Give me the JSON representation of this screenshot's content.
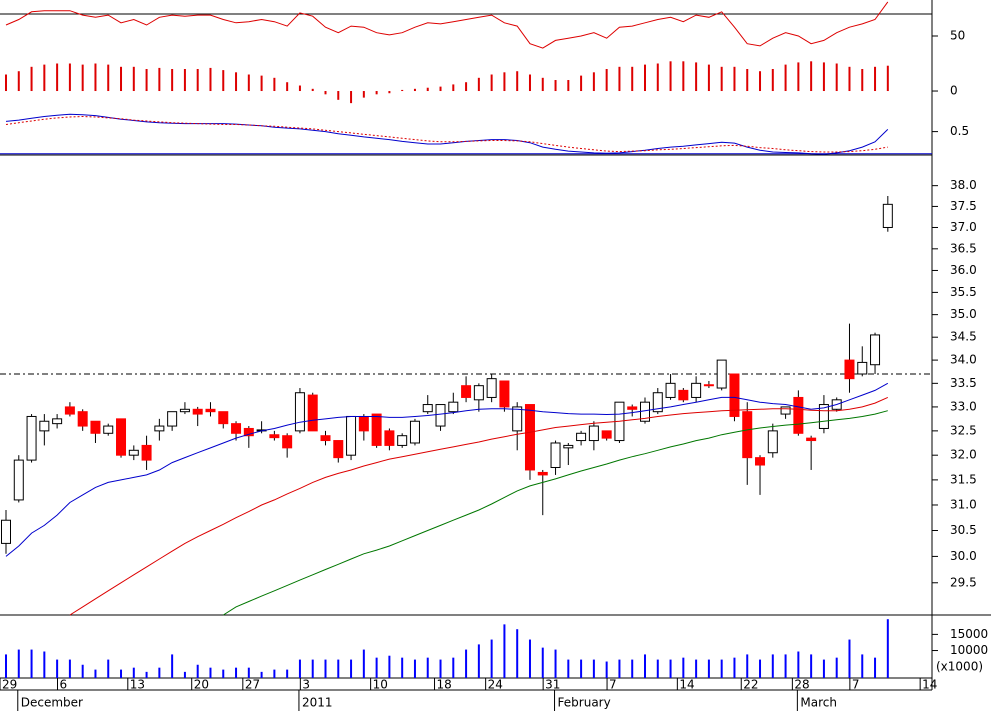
{
  "chart_data": [
    {
      "type": "combo",
      "ylim": [
        -12.7,
        82.7
      ],
      "yticks": [
        0,
        50
      ],
      "ref_line": 70,
      "ref_color": "#000000",
      "ref_style": "solid",
      "series": [
        {
          "kind": "line",
          "color": "#dd0000",
          "values": [
            60,
            65,
            72,
            73,
            73,
            73,
            69,
            67,
            69,
            62,
            65,
            60,
            67,
            69,
            68,
            69,
            69,
            65,
            62,
            63,
            65,
            63,
            59,
            71,
            68,
            58,
            53,
            59,
            58,
            53,
            51,
            53,
            58,
            62,
            61,
            63,
            65,
            67,
            69,
            62,
            59,
            43,
            39,
            46,
            48,
            50,
            53,
            48,
            58,
            59,
            62,
            65,
            67,
            63,
            69,
            67,
            72,
            58,
            43,
            41,
            48,
            53,
            50,
            43,
            46,
            53,
            58,
            61,
            65,
            81
          ]
        },
        {
          "kind": "bar",
          "color": "#dd0000",
          "values": [
            15,
            18,
            22,
            24,
            25,
            25,
            24,
            25,
            24,
            22,
            22,
            20,
            21,
            20,
            20,
            20,
            21,
            19,
            17,
            15,
            14,
            12,
            8,
            5,
            2,
            -3,
            -8,
            -11,
            -6,
            -3,
            -2,
            1,
            2,
            3,
            4,
            6,
            8,
            12,
            15,
            17,
            18,
            15,
            12,
            10,
            10,
            14,
            17,
            20,
            22,
            22,
            24,
            25,
            27,
            27,
            26,
            24,
            22,
            22,
            20,
            18,
            20,
            24,
            26,
            27,
            26,
            25,
            22,
            20,
            22,
            23
          ]
        }
      ]
    },
    {
      "type": "line",
      "ylim": [
        -0.05,
        1.1
      ],
      "yticks": [
        0.5
      ],
      "ref_line": 0,
      "ref_color": "#0000cc",
      "ref_style": "solid",
      "series": [
        {
          "kind": "line",
          "color": "#0000cc",
          "values": [
            0.73,
            0.76,
            0.8,
            0.84,
            0.87,
            0.89,
            0.88,
            0.86,
            0.82,
            0.78,
            0.75,
            0.72,
            0.7,
            0.69,
            0.68,
            0.68,
            0.68,
            0.68,
            0.67,
            0.65,
            0.63,
            0.6,
            0.58,
            0.56,
            0.53,
            0.5,
            0.45,
            0.42,
            0.38,
            0.35,
            0.32,
            0.28,
            0.25,
            0.22,
            0.22,
            0.25,
            0.28,
            0.3,
            0.32,
            0.32,
            0.3,
            0.25,
            0.15,
            0.1,
            0.06,
            0.04,
            0.02,
            0.01,
            0.02,
            0.05,
            0.08,
            0.12,
            0.15,
            0.17,
            0.2,
            0.23,
            0.26,
            0.24,
            0.15,
            0.08,
            0.04,
            0.03,
            0.02,
            0,
            -0.01,
            0.02,
            0.07,
            0.15,
            0.27,
            0.55
          ]
        },
        {
          "kind": "line",
          "dash": true,
          "color": "#dd0000",
          "values": [
            0.66,
            0.7,
            0.74,
            0.78,
            0.81,
            0.83,
            0.84,
            0.83,
            0.81,
            0.79,
            0.76,
            0.74,
            0.72,
            0.7,
            0.69,
            0.68,
            0.67,
            0.66,
            0.66,
            0.65,
            0.63,
            0.62,
            0.6,
            0.58,
            0.56,
            0.53,
            0.5,
            0.47,
            0.44,
            0.41,
            0.38,
            0.35,
            0.32,
            0.29,
            0.27,
            0.27,
            0.28,
            0.29,
            0.3,
            0.3,
            0.29,
            0.27,
            0.23,
            0.19,
            0.15,
            0.12,
            0.09,
            0.06,
            0.05,
            0.06,
            0.07,
            0.09,
            0.1,
            0.12,
            0.14,
            0.16,
            0.18,
            0.19,
            0.17,
            0.14,
            0.12,
            0.09,
            0.07,
            0.05,
            0.04,
            0.04,
            0.05,
            0.07,
            0.1,
            0.15
          ]
        }
      ]
    },
    {
      "type": "candlestick",
      "log": true,
      "ylim": [
        28.9,
        38.75
      ],
      "yticks": [
        29.5,
        {
          "value": 30,
          "label": "30.0"
        },
        30.5,
        {
          "value": 31,
          "label": "31.0"
        },
        31.5,
        {
          "value": 32,
          "label": "32.0"
        },
        32.5,
        {
          "value": 33,
          "label": "33.0"
        },
        33.5,
        {
          "value": 34,
          "label": "34.0"
        },
        34.5,
        {
          "value": 35,
          "label": "35.0"
        },
        35.5,
        {
          "value": 36,
          "label": "36.0"
        },
        36.5,
        {
          "value": 37,
          "label": "37.0"
        },
        37.5,
        {
          "value": 38,
          "label": "38.0"
        }
      ],
      "ref_line": 33.7,
      "ref_color": "#000000",
      "ref_style": "dashdot",
      "up_color": "#ffffff",
      "down_color": "#ff0000",
      "open": [
        30.25,
        31.1,
        31.9,
        32.5,
        32.65,
        33.0,
        32.9,
        32.7,
        32.45,
        32.75,
        32.0,
        32.2,
        32.5,
        32.6,
        32.9,
        32.95,
        32.95,
        32.9,
        32.65,
        32.55,
        32.5,
        32.42,
        32.4,
        32.5,
        33.25,
        32.4,
        32.3,
        32.0,
        32.8,
        32.85,
        32.5,
        32.2,
        32.25,
        32.9,
        32.6,
        32.9,
        33.45,
        33.15,
        33.2,
        33.55,
        32.5,
        33.05,
        31.65,
        31.75,
        32.15,
        32.3,
        32.3,
        32.5,
        32.3,
        33.0,
        32.7,
        32.9,
        33.2,
        33.35,
        33.2,
        33.47,
        33.4,
        33.7,
        32.9,
        31.95,
        32.05,
        32.85,
        33.2,
        32.35,
        32.55,
        32.95,
        34.0,
        33.7,
        33.9,
        37.0
      ],
      "high": [
        30.9,
        32.0,
        32.85,
        32.85,
        32.85,
        33.1,
        32.95,
        32.7,
        32.65,
        32.75,
        32.2,
        32.4,
        32.75,
        32.9,
        33.1,
        33.0,
        33.1,
        32.9,
        32.7,
        32.6,
        32.7,
        32.5,
        32.45,
        33.4,
        33.3,
        32.5,
        32.3,
        32.8,
        32.85,
        32.85,
        32.55,
        32.45,
        32.75,
        33.25,
        33.05,
        33.3,
        33.65,
        33.5,
        33.7,
        33.55,
        33.1,
        33.05,
        31.7,
        32.3,
        32.25,
        32.5,
        32.7,
        32.5,
        33.1,
        33.05,
        33.2,
        33.4,
        33.7,
        33.4,
        33.65,
        33.55,
        34.0,
        33.7,
        33.1,
        32.0,
        32.65,
        33.0,
        33.35,
        32.4,
        33.25,
        33.2,
        34.8,
        34.3,
        34.6,
        37.75
      ],
      "low": [
        30.05,
        31.05,
        31.85,
        32.2,
        32.55,
        32.8,
        32.5,
        32.25,
        32.4,
        31.95,
        31.9,
        31.7,
        32.3,
        32.5,
        32.85,
        32.6,
        32.8,
        32.55,
        32.3,
        32.15,
        32.45,
        32.3,
        31.95,
        32.45,
        32.5,
        32.2,
        31.85,
        31.9,
        32.3,
        32.15,
        32.1,
        32.15,
        32.2,
        32.85,
        32.5,
        32.85,
        33.1,
        32.9,
        33.1,
        32.9,
        32.1,
        31.5,
        30.8,
        31.6,
        31.8,
        32.2,
        32.1,
        32.3,
        32.25,
        32.8,
        32.65,
        32.85,
        33.15,
        33.1,
        33.1,
        33.4,
        33.35,
        32.7,
        31.4,
        31.2,
        31.95,
        32.75,
        32.4,
        31.7,
        32.45,
        32.9,
        33.3,
        33.65,
        33.7,
        36.9
      ],
      "close": [
        30.7,
        31.9,
        32.8,
        32.7,
        32.75,
        32.85,
        32.6,
        32.45,
        32.6,
        32.0,
        32.1,
        31.9,
        32.6,
        32.9,
        32.95,
        32.85,
        32.9,
        32.65,
        32.45,
        32.4,
        32.52,
        32.36,
        32.15,
        33.3,
        32.5,
        32.3,
        31.95,
        32.8,
        32.5,
        32.2,
        32.2,
        32.4,
        32.7,
        33.05,
        33.05,
        33.1,
        33.2,
        33.45,
        33.6,
        33.0,
        33.0,
        31.7,
        31.6,
        32.25,
        32.2,
        32.45,
        32.6,
        32.35,
        33.1,
        32.95,
        33.1,
        33.3,
        33.5,
        33.15,
        33.5,
        33.45,
        34.0,
        32.8,
        31.95,
        31.8,
        32.5,
        33.0,
        32.45,
        32.3,
        33.05,
        33.15,
        33.6,
        33.95,
        34.55,
        37.55
      ],
      "series": [
        {
          "kind": "line",
          "color": "#0000cc",
          "values": [
            30.0,
            30.2,
            30.45,
            30.6,
            30.8,
            31.05,
            31.2,
            31.35,
            31.45,
            31.5,
            31.55,
            31.6,
            31.7,
            31.85,
            31.95,
            32.05,
            32.15,
            32.25,
            32.35,
            32.43,
            32.5,
            32.55,
            32.62,
            32.68,
            32.72,
            32.75,
            32.78,
            32.8,
            32.8,
            32.8,
            32.78,
            32.78,
            32.8,
            32.82,
            32.85,
            32.88,
            32.92,
            32.95,
            32.96,
            32.96,
            32.95,
            32.93,
            32.9,
            32.88,
            32.86,
            32.85,
            32.85,
            32.84,
            32.85,
            32.88,
            32.92,
            32.96,
            33.0,
            33.05,
            33.1,
            33.15,
            33.2,
            33.2,
            33.15,
            33.1,
            33.07,
            33.05,
            33.0,
            32.95,
            32.98,
            33.05,
            33.15,
            33.25,
            33.35,
            33.5
          ]
        },
        {
          "kind": "line",
          "color": "#dd0000",
          "values": [
            null,
            null,
            null,
            null,
            null,
            28.9,
            29.05,
            29.2,
            29.35,
            29.5,
            29.65,
            29.8,
            29.95,
            30.1,
            30.25,
            30.38,
            30.5,
            30.62,
            30.75,
            30.87,
            31.0,
            31.1,
            31.22,
            31.33,
            31.45,
            31.55,
            31.63,
            31.7,
            31.78,
            31.85,
            31.92,
            31.97,
            32.02,
            32.07,
            32.12,
            32.17,
            32.22,
            32.27,
            32.33,
            32.38,
            32.43,
            32.47,
            32.52,
            32.57,
            32.6,
            32.63,
            32.66,
            32.68,
            32.7,
            32.73,
            32.76,
            32.8,
            32.83,
            32.86,
            32.88,
            32.9,
            32.92,
            32.93,
            32.94,
            32.95,
            32.96,
            32.96,
            32.95,
            32.93,
            32.92,
            32.92,
            32.95,
            33.0,
            33.08,
            33.2
          ]
        },
        {
          "kind": "line",
          "color": "#007700",
          "values": [
            null,
            null,
            null,
            null,
            null,
            null,
            null,
            null,
            null,
            null,
            null,
            null,
            null,
            null,
            null,
            null,
            null,
            28.9,
            29.05,
            29.15,
            29.25,
            29.35,
            29.45,
            29.55,
            29.65,
            29.75,
            29.85,
            29.95,
            30.05,
            30.12,
            30.2,
            30.3,
            30.4,
            30.5,
            30.6,
            30.7,
            30.8,
            30.9,
            31.02,
            31.15,
            31.28,
            31.38,
            31.45,
            31.52,
            31.6,
            31.68,
            31.75,
            31.82,
            31.9,
            31.97,
            32.03,
            32.1,
            32.17,
            32.23,
            32.3,
            32.35,
            32.42,
            32.47,
            32.52,
            32.56,
            32.59,
            32.62,
            32.64,
            32.67,
            32.7,
            32.73,
            32.76,
            32.8,
            32.85,
            32.92
          ]
        }
      ]
    },
    {
      "type": "bar",
      "ylim": [
        1500,
        21000
      ],
      "yticks": [
        10000,
        15000
      ],
      "unit_label": "(x1000)",
      "color": "#0000ff",
      "values": [
        8800,
        10300,
        10300,
        9700,
        7200,
        7200,
        5600,
        4100,
        7200,
        4100,
        4700,
        3400,
        4700,
        8800,
        3400,
        5600,
        4700,
        4100,
        4700,
        4700,
        3400,
        4100,
        4100,
        7200,
        7200,
        7200,
        7200,
        7200,
        10300,
        7800,
        8400,
        7800,
        7200,
        7800,
        7200,
        7800,
        10300,
        11900,
        13400,
        18100,
        16600,
        13400,
        10900,
        10300,
        7200,
        7200,
        7200,
        6600,
        7200,
        7200,
        8800,
        7200,
        7200,
        7800,
        7200,
        7200,
        7200,
        7800,
        8800,
        7200,
        8800,
        8800,
        9700,
        8800,
        7200,
        7800,
        13400,
        8800,
        7800,
        19700
      ],
      "xticks": [
        {
          "value": 0,
          "label": "29"
        },
        {
          "value": 4.5,
          "label": "6"
        },
        {
          "value": 10,
          "label": "13"
        },
        {
          "value": 15,
          "label": "20"
        },
        {
          "value": 19,
          "label": "27"
        },
        {
          "value": 23.5,
          "label": "3"
        },
        {
          "value": 29,
          "label": "10"
        },
        {
          "value": 34,
          "label": "18"
        },
        {
          "value": 38,
          "label": "24"
        },
        {
          "value": 42.5,
          "label": "31"
        },
        {
          "value": 47.5,
          "label": "7"
        },
        {
          "value": 53,
          "label": "14"
        },
        {
          "value": 58,
          "label": "22"
        },
        {
          "value": 62,
          "label": "28"
        },
        {
          "value": 66.5,
          "label": "7"
        },
        {
          "value": 72,
          "label": "14"
        }
      ],
      "month_ticks": [
        {
          "value": 1,
          "label": "December"
        },
        {
          "value": 23,
          "label": "2011"
        },
        {
          "value": 43,
          "label": "February"
        },
        {
          "value": 62,
          "label": "March"
        }
      ]
    }
  ]
}
